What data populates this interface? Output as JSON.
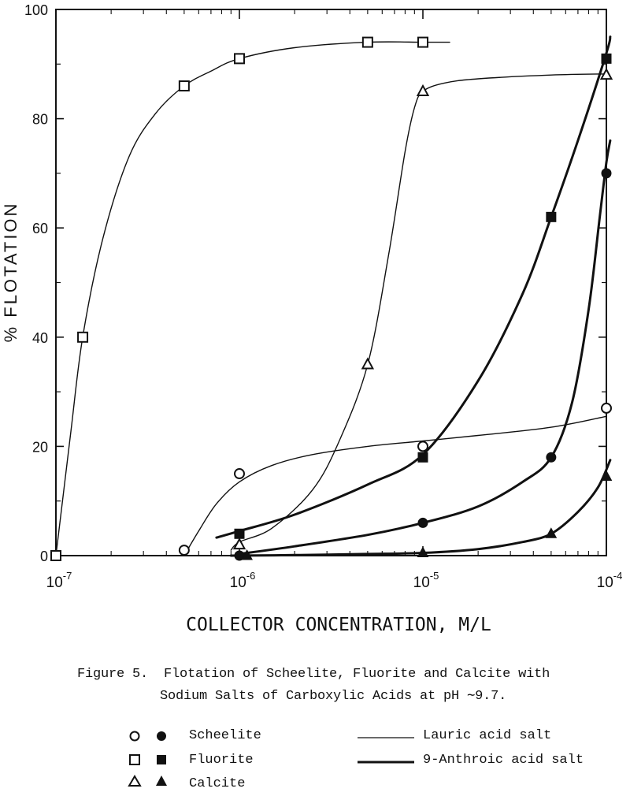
{
  "chart_data": {
    "type": "line",
    "x_scale": "log",
    "xlim": [
      1e-07,
      0.0001
    ],
    "ylim": [
      0,
      100
    ],
    "xlabel": "COLLECTOR CONCENTRATION, M/L",
    "ylabel": "% FLOTATION",
    "x_tick_labels": [
      {
        "base": "10",
        "exp": "-7"
      },
      {
        "base": "10",
        "exp": "-6"
      },
      {
        "base": "10",
        "exp": "-5"
      },
      {
        "base": "10",
        "exp": "-4"
      }
    ],
    "y_ticks": [
      0,
      20,
      40,
      60,
      80,
      100
    ],
    "series": [
      {
        "mineral": "Fluorite",
        "collector": "Lauric acid salt",
        "marker": "square-open",
        "points": [
          [
            1e-07,
            0
          ],
          [
            1.4e-07,
            40
          ],
          [
            5e-07,
            86
          ],
          [
            1e-06,
            91
          ],
          [
            5e-06,
            94
          ],
          [
            1e-05,
            94
          ]
        ],
        "curve": [
          [
            1e-07,
            0
          ],
          [
            1.2e-07,
            22
          ],
          [
            1.4e-07,
            40
          ],
          [
            1.8e-07,
            58
          ],
          [
            2.5e-07,
            73
          ],
          [
            3.5e-07,
            81
          ],
          [
            5e-07,
            86
          ],
          [
            7e-07,
            88.7
          ],
          [
            1e-06,
            91
          ],
          [
            2e-06,
            93
          ],
          [
            5e-06,
            94
          ],
          [
            1e-05,
            94
          ],
          [
            1.4e-05,
            94
          ]
        ]
      },
      {
        "mineral": "Calcite",
        "collector": "Lauric acid salt",
        "marker": "triangle-open",
        "points": [
          [
            1e-06,
            2
          ],
          [
            5e-06,
            35
          ],
          [
            1e-05,
            85
          ],
          [
            0.0001,
            88
          ]
        ],
        "curve": [
          [
            9e-07,
            1
          ],
          [
            1e-06,
            2.5
          ],
          [
            1.5e-06,
            5
          ],
          [
            2.5e-06,
            12
          ],
          [
            3.5e-06,
            21
          ],
          [
            5e-06,
            35
          ],
          [
            6.5e-06,
            55
          ],
          [
            8e-06,
            74
          ],
          [
            9e-06,
            82
          ],
          [
            1e-05,
            85
          ],
          [
            1.3e-05,
            86.5
          ],
          [
            2e-05,
            87.3
          ],
          [
            5e-05,
            88
          ],
          [
            0.0001,
            88.2
          ]
        ]
      },
      {
        "mineral": "Scheelite",
        "collector": "Lauric acid salt",
        "marker": "circle-open",
        "points": [
          [
            5e-07,
            1
          ],
          [
            1e-06,
            15
          ],
          [
            1e-05,
            20
          ],
          [
            0.0001,
            27
          ]
        ],
        "curve": [
          [
            5e-07,
            0
          ],
          [
            6e-07,
            4.5
          ],
          [
            7.5e-07,
            9.5
          ],
          [
            1e-06,
            13.5
          ],
          [
            1.5e-06,
            16.5
          ],
          [
            2.5e-06,
            18.5
          ],
          [
            5e-06,
            20
          ],
          [
            1e-05,
            21
          ],
          [
            2e-05,
            22
          ],
          [
            5e-05,
            23.5
          ],
          [
            0.0001,
            25.5
          ]
        ]
      },
      {
        "mineral": "Fluorite",
        "collector": "9-Anthroic acid salt",
        "marker": "square-filled",
        "points": [
          [
            1e-06,
            4
          ],
          [
            1e-05,
            18
          ],
          [
            5e-05,
            62
          ],
          [
            0.0001,
            91
          ]
        ],
        "curve": [
          [
            7.5e-07,
            3.3
          ],
          [
            1e-06,
            4.5
          ],
          [
            2e-06,
            7.5
          ],
          [
            5e-06,
            13
          ],
          [
            1e-05,
            18.5
          ],
          [
            2e-05,
            32
          ],
          [
            3.5e-05,
            48
          ],
          [
            5e-05,
            62
          ],
          [
            7e-05,
            76
          ],
          [
            0.0001,
            92
          ],
          [
            0.000105,
            95
          ]
        ]
      },
      {
        "mineral": "Scheelite",
        "collector": "9-Anthroic acid salt",
        "marker": "circle-filled",
        "points": [
          [
            1e-06,
            0
          ],
          [
            1e-05,
            6
          ],
          [
            5e-05,
            18
          ],
          [
            0.0001,
            70
          ]
        ],
        "curve": [
          [
            1e-06,
            0.3
          ],
          [
            2e-06,
            1.7
          ],
          [
            5e-06,
            3.8
          ],
          [
            1e-05,
            6
          ],
          [
            2e-05,
            9
          ],
          [
            3.5e-05,
            13.5
          ],
          [
            5e-05,
            18
          ],
          [
            6.5e-05,
            28
          ],
          [
            8e-05,
            45
          ],
          [
            9.2e-05,
            62
          ],
          [
            0.0001,
            72
          ],
          [
            0.000105,
            76
          ]
        ]
      },
      {
        "mineral": "Calcite",
        "collector": "9-Anthroic acid salt",
        "marker": "triangle-filled",
        "points": [
          [
            1.1e-06,
            0
          ],
          [
            1e-05,
            0.5
          ],
          [
            5e-05,
            4
          ],
          [
            0.0001,
            14.5
          ]
        ],
        "curve": [
          [
            9e-07,
            0
          ],
          [
            2e-06,
            0.1
          ],
          [
            5e-06,
            0.3
          ],
          [
            1e-05,
            0.5
          ],
          [
            2e-05,
            1.2
          ],
          [
            3.5e-05,
            2.5
          ],
          [
            5e-05,
            4
          ],
          [
            7e-05,
            8
          ],
          [
            9e-05,
            12.5
          ],
          [
            0.000105,
            17.5
          ]
        ]
      }
    ]
  },
  "figure": {
    "caption_line1": "Figure 5.  Flotation of Scheelite, Fluorite and Calcite with",
    "caption_line2": "Sodium Salts of Carboxylic Acids at pH ∼9.7."
  },
  "legend": {
    "minerals": [
      "Scheelite",
      "Fluorite",
      "Calcite"
    ],
    "collectors": [
      "Lauric acid salt",
      "9-Anthroic acid salt"
    ]
  }
}
